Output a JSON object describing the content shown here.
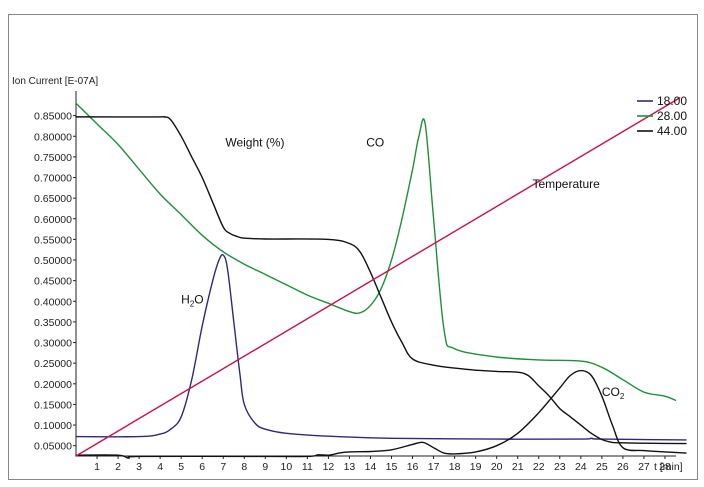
{
  "chart_data": {
    "type": "line",
    "ylabel": "Ion Current [E-07A]",
    "xlabel": "t [min]",
    "xlim": [
      0,
      29
    ],
    "ylim": [
      0.025,
      0.9
    ],
    "x_ticks": [
      1,
      2,
      3,
      4,
      5,
      6,
      7,
      8,
      9,
      10,
      11,
      12,
      13,
      14,
      15,
      16,
      17,
      18,
      19,
      20,
      21,
      22,
      23,
      24,
      25,
      26,
      27,
      28
    ],
    "y_ticks": [
      {
        "value": 0.05,
        "label": "0.05000"
      },
      {
        "value": 0.1,
        "label": "0.10000"
      },
      {
        "value": 0.15,
        "label": "0.15000"
      },
      {
        "value": 0.2,
        "label": "0.20000"
      },
      {
        "value": 0.25,
        "label": "0.25000"
      },
      {
        "value": 0.3,
        "label": "0.30000"
      },
      {
        "value": 0.35,
        "label": "0.35000"
      },
      {
        "value": 0.4,
        "label": "0.40000"
      },
      {
        "value": 0.45,
        "label": "0.45000"
      },
      {
        "value": 0.5,
        "label": "0.50000"
      },
      {
        "value": 0.55,
        "label": "0.55000"
      },
      {
        "value": 0.6,
        "label": "0.60000"
      },
      {
        "value": 0.65,
        "label": "0.65000"
      },
      {
        "value": 0.7,
        "label": "0.70000"
      },
      {
        "value": 0.75,
        "label": "0.75000"
      },
      {
        "value": 0.8,
        "label": "0.80000"
      },
      {
        "value": 0.85,
        "label": "0.85000"
      }
    ],
    "legend_position": "top-right",
    "series": [
      {
        "name": "18.00",
        "color": "#2e2a7a",
        "x": [
          0,
          3,
          4,
          4.5,
          5,
          5.5,
          6,
          6.5,
          6.8,
          7,
          7.2,
          7.5,
          7.8,
          8,
          8.5,
          9,
          10,
          12,
          15,
          20,
          24,
          24.5,
          25,
          29
        ],
        "y": [
          0.072,
          0.072,
          0.078,
          0.09,
          0.12,
          0.21,
          0.34,
          0.45,
          0.5,
          0.512,
          0.48,
          0.35,
          0.22,
          0.15,
          0.105,
          0.09,
          0.08,
          0.073,
          0.068,
          0.066,
          0.066,
          0.068,
          0.066,
          0.064
        ]
      },
      {
        "name": "28.00",
        "color": "#1f8f3a",
        "x": [
          0,
          1,
          2,
          3,
          4,
          5,
          6,
          7,
          8,
          9,
          10,
          11,
          12,
          13,
          13.5,
          14,
          14.5,
          15,
          15.5,
          16,
          16.3,
          16.6,
          17,
          17.5,
          18,
          20,
          22,
          24,
          25,
          26,
          27,
          28,
          28.5
        ],
        "y": [
          0.88,
          0.83,
          0.78,
          0.72,
          0.66,
          0.61,
          0.56,
          0.52,
          0.49,
          0.465,
          0.44,
          0.415,
          0.395,
          0.375,
          0.372,
          0.39,
          0.43,
          0.5,
          0.6,
          0.72,
          0.8,
          0.83,
          0.6,
          0.33,
          0.285,
          0.265,
          0.258,
          0.255,
          0.24,
          0.21,
          0.18,
          0.17,
          0.16
        ]
      },
      {
        "name": "44.00",
        "color": "#111111",
        "x": [
          0,
          2,
          2.5,
          3,
          8,
          11,
          11.5,
          12,
          12.5,
          13,
          14,
          15,
          16,
          16.5,
          17,
          17.5,
          18,
          19,
          20,
          21,
          22,
          23,
          23.5,
          24,
          24.5,
          25,
          25.5,
          26,
          27,
          28,
          29
        ],
        "y": [
          0.027,
          0.027,
          0.02,
          0.024,
          0.024,
          0.024,
          0.028,
          0.027,
          0.032,
          0.035,
          0.036,
          0.04,
          0.053,
          0.058,
          0.045,
          0.032,
          0.03,
          0.035,
          0.05,
          0.08,
          0.13,
          0.19,
          0.22,
          0.232,
          0.22,
          0.17,
          0.1,
          0.045,
          0.038,
          0.035,
          0.032
        ]
      },
      {
        "color": "#111111",
        "x": [
          0,
          3.8,
          4.2,
          4.5,
          5,
          5.5,
          6,
          6.5,
          7,
          7.3,
          7.6,
          8,
          9,
          12,
          13,
          13.5,
          14,
          14.5,
          15,
          15.5,
          16,
          17,
          18,
          19,
          20,
          21,
          21.5,
          22,
          22.5,
          23,
          23.5,
          24,
          24.5,
          25,
          25.5,
          26,
          27,
          29
        ],
        "y": [
          0.847,
          0.847,
          0.847,
          0.84,
          0.8,
          0.75,
          0.7,
          0.64,
          0.58,
          0.565,
          0.558,
          0.553,
          0.551,
          0.55,
          0.54,
          0.52,
          0.47,
          0.41,
          0.35,
          0.3,
          0.26,
          0.245,
          0.238,
          0.233,
          0.23,
          0.228,
          0.22,
          0.195,
          0.17,
          0.14,
          0.12,
          0.1,
          0.08,
          0.065,
          0.058,
          0.057,
          0.056,
          0.055
        ]
      },
      {
        "color": "#c8104a",
        "x": [
          0,
          28.7
        ],
        "y": [
          0.025,
          0.893
        ]
      }
    ],
    "annotations": [
      {
        "text": "Weight (%)",
        "x": 7.1,
        "y": 0.775
      },
      {
        "text": "CO",
        "x": 13.8,
        "y": 0.775
      },
      {
        "text": "Temperature",
        "x": 21.7,
        "y": 0.675
      },
      {
        "text": "H",
        "sub": "2",
        "suffix": "O",
        "x": 5.0,
        "y": 0.395
      },
      {
        "text": "CO",
        "sub": "2",
        "suffix": "",
        "x": 25.0,
        "y": 0.17
      }
    ]
  }
}
